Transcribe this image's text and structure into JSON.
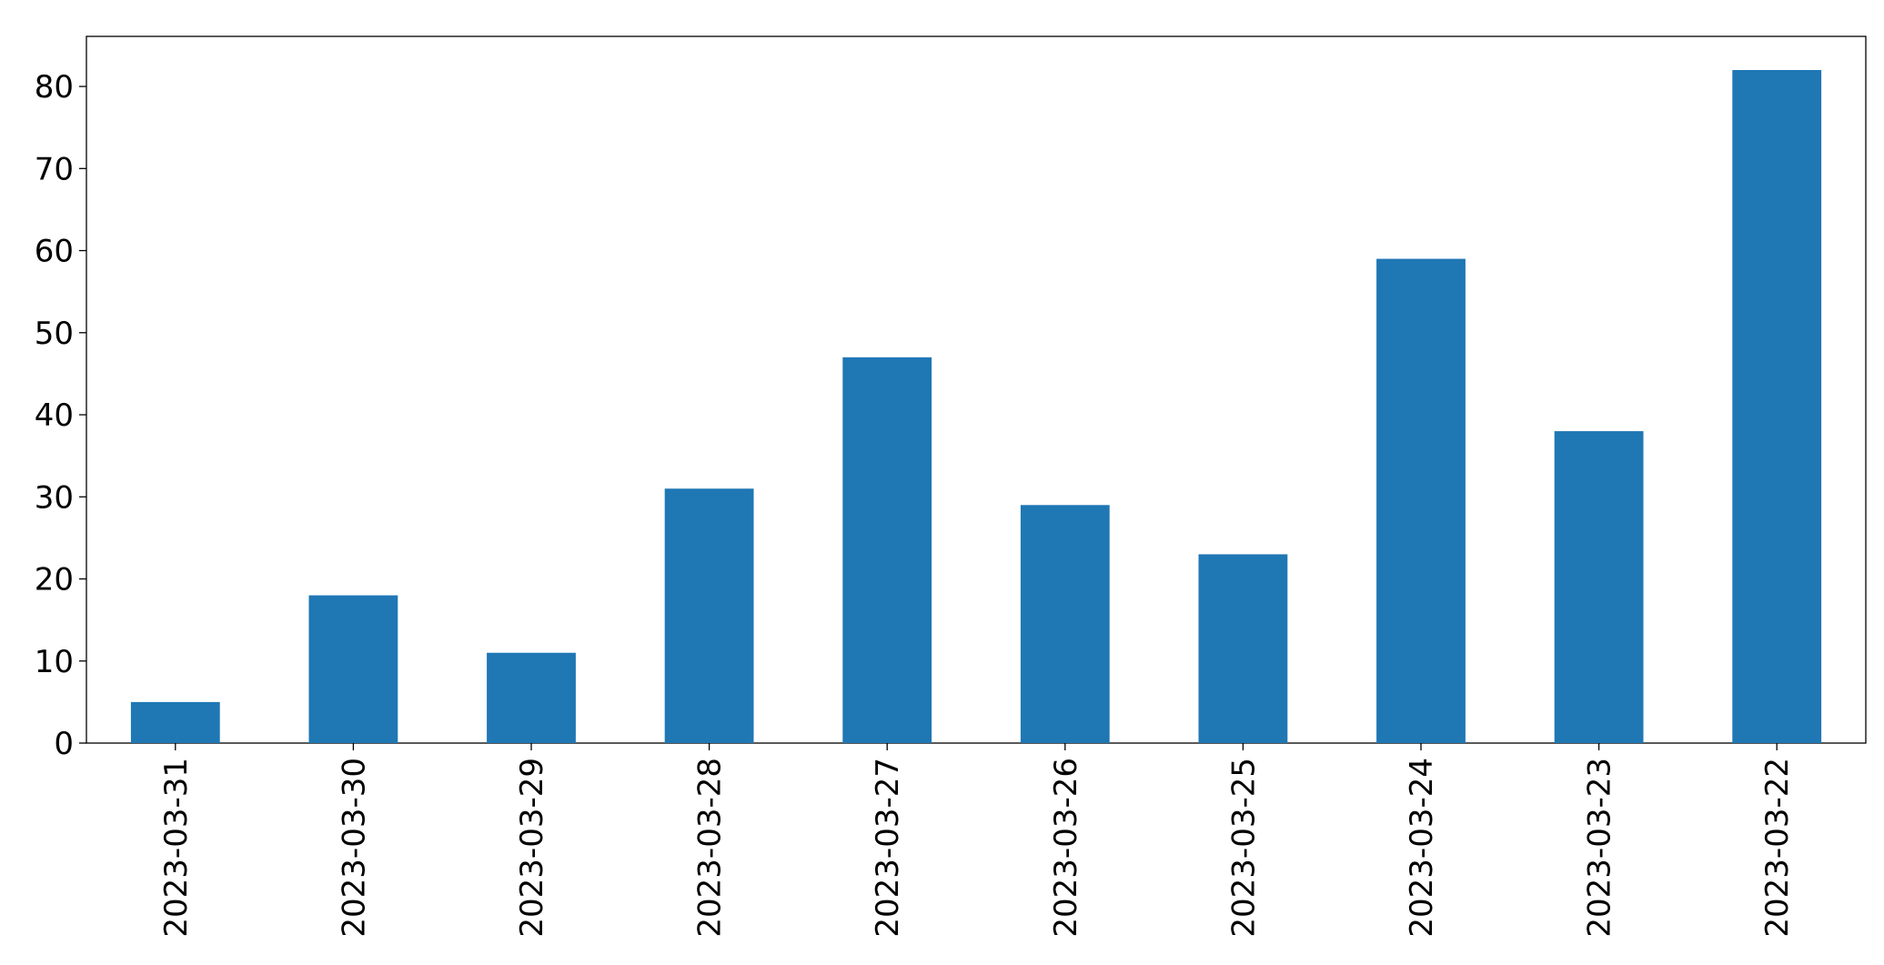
{
  "chart_data": {
    "type": "bar",
    "categories": [
      "2023-03-31",
      "2023-03-30",
      "2023-03-29",
      "2023-03-28",
      "2023-03-27",
      "2023-03-26",
      "2023-03-25",
      "2023-03-24",
      "2023-03-23",
      "2023-03-22"
    ],
    "values": [
      5,
      18,
      11,
      31,
      47,
      29,
      23,
      59,
      38,
      82
    ],
    "color": "#1f77b4",
    "ylim": [
      0,
      86.1
    ],
    "yticks": [
      0,
      10,
      20,
      30,
      40,
      50,
      60,
      70,
      80
    ],
    "grid": false
  }
}
